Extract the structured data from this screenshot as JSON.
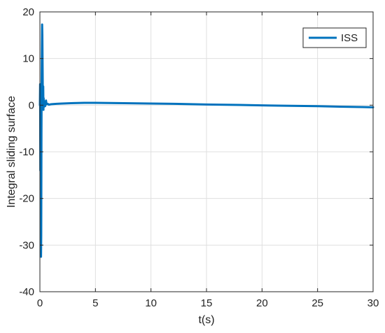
{
  "chart_data": {
    "type": "line",
    "title": "",
    "xlabel": "t(s)",
    "ylabel": "Integral sliding surface",
    "xlim": [
      0,
      30
    ],
    "ylim": [
      -40,
      20
    ],
    "x_ticks": [
      0,
      5,
      10,
      15,
      20,
      25,
      30
    ],
    "y_ticks": [
      -40,
      -30,
      -20,
      -10,
      0,
      10,
      20
    ],
    "x_tick_labels": [
      "0",
      "5",
      "10",
      "15",
      "20",
      "25",
      "30"
    ],
    "y_tick_labels": [
      "-40",
      "-30",
      "-20",
      "-10",
      "0",
      "10",
      "20"
    ],
    "grid": true,
    "legend_position": "top-right",
    "series": [
      {
        "name": "ISS",
        "color": "#0072BD",
        "points": [
          [
            0.0,
            0.0
          ],
          [
            0.02,
            4.5
          ],
          [
            0.04,
            -14.0
          ],
          [
            0.06,
            3.5
          ],
          [
            0.08,
            -24.0
          ],
          [
            0.1,
            -32.5
          ],
          [
            0.12,
            -28.0
          ],
          [
            0.14,
            -6.0
          ],
          [
            0.16,
            5.5
          ],
          [
            0.18,
            12.0
          ],
          [
            0.2,
            17.3
          ],
          [
            0.22,
            15.0
          ],
          [
            0.24,
            9.0
          ],
          [
            0.26,
            3.0
          ],
          [
            0.28,
            -0.5
          ],
          [
            0.3,
            4.0
          ],
          [
            0.32,
            -1.0
          ],
          [
            0.34,
            1.5
          ],
          [
            0.36,
            0.0
          ],
          [
            0.38,
            0.8
          ],
          [
            0.4,
            -0.3
          ],
          [
            0.44,
            0.6
          ],
          [
            0.48,
            -0.2
          ],
          [
            0.55,
            1.0
          ],
          [
            0.6,
            0.2
          ],
          [
            0.7,
            0.3
          ],
          [
            0.8,
            0.1
          ],
          [
            1.0,
            0.2
          ],
          [
            1.5,
            0.3
          ],
          [
            2.0,
            0.35
          ],
          [
            3.0,
            0.45
          ],
          [
            4.0,
            0.5
          ],
          [
            5.0,
            0.5
          ],
          [
            7.0,
            0.45
          ],
          [
            10.0,
            0.35
          ],
          [
            12.0,
            0.3
          ],
          [
            15.0,
            0.15
          ],
          [
            18.0,
            0.05
          ],
          [
            20.0,
            -0.05
          ],
          [
            22.0,
            -0.12
          ],
          [
            25.0,
            -0.22
          ],
          [
            27.0,
            -0.32
          ],
          [
            29.0,
            -0.4
          ],
          [
            30.0,
            -0.45
          ]
        ]
      }
    ]
  }
}
